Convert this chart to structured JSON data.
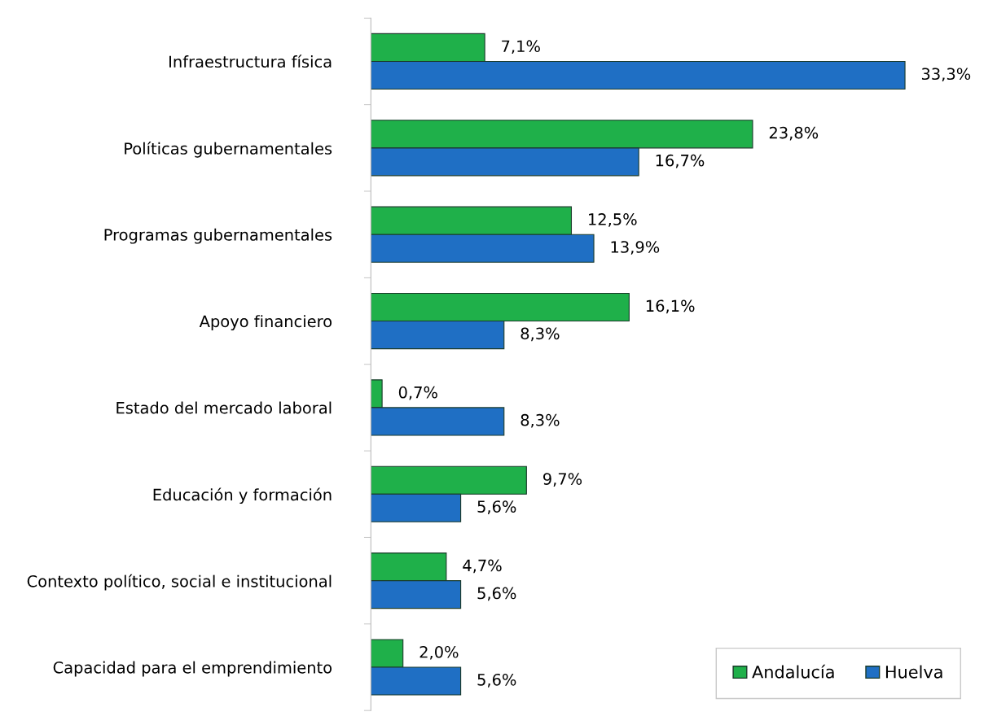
{
  "chart_data": {
    "type": "bar",
    "orientation": "horizontal",
    "categories": [
      "Infraestructura física",
      "Políticas gubernamentales",
      "Programas gubernamentales",
      "Apoyo financiero",
      "Estado del mercado laboral",
      "Educación y formación",
      "Contexto político, social e institucional",
      "Capacidad para el emprendimiento"
    ],
    "series": [
      {
        "name": "Andalucía",
        "color": "#1fb04a",
        "values": [
          7.1,
          23.8,
          12.5,
          16.1,
          0.7,
          9.7,
          4.7,
          2.0
        ],
        "value_labels": [
          "7,1%",
          "23,8%",
          "12,5%",
          "16,1%",
          "0,7%",
          "9,7%",
          "4,7%",
          "2,0%"
        ]
      },
      {
        "name": "Huelva",
        "color": "#1f6fc4",
        "values": [
          33.3,
          16.7,
          13.9,
          8.3,
          8.3,
          5.6,
          5.6,
          5.6
        ],
        "value_labels": [
          "33,3%",
          "16,7%",
          "13,9%",
          "8,3%",
          "8,3%",
          "5,6%",
          "5,6%",
          "5,6%"
        ]
      }
    ],
    "legend": "bottom right",
    "grid": false
  }
}
